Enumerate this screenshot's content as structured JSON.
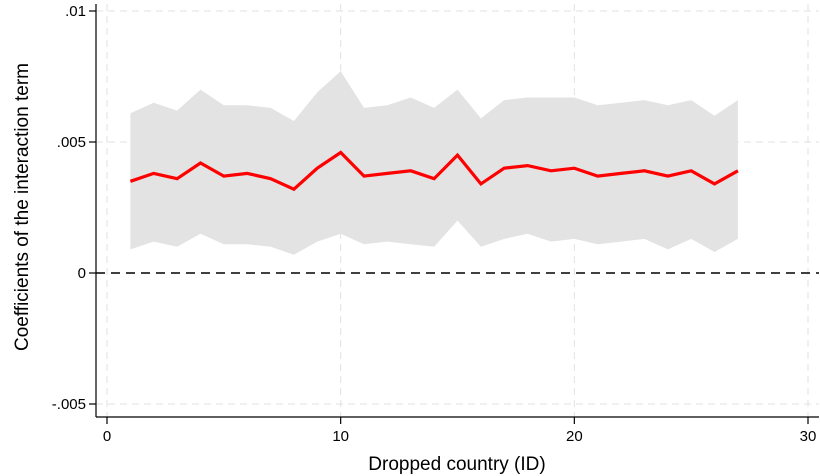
{
  "chart_data": {
    "type": "line",
    "title": "",
    "xlabel": "Dropped country (ID)",
    "ylabel": "Coefficients of the interaction term",
    "xlim": [
      0,
      30
    ],
    "ylim": [
      -0.005,
      0.01
    ],
    "x_ticks": [
      {
        "value": 0,
        "label": "0"
      },
      {
        "value": 10,
        "label": "10"
      },
      {
        "value": 20,
        "label": "20"
      },
      {
        "value": 30,
        "label": "30"
      }
    ],
    "y_ticks": [
      {
        "value": -0.005,
        "label": "-.005"
      },
      {
        "value": 0,
        "label": "0"
      },
      {
        "value": 0.005,
        "label": ".005"
      },
      {
        "value": 0.01,
        "label": ".01"
      }
    ],
    "grid": true,
    "reference_line": {
      "y": 0,
      "style": "dashed"
    },
    "x": [
      1,
      2,
      3,
      4,
      5,
      6,
      7,
      8,
      9,
      10,
      11,
      12,
      13,
      14,
      15,
      16,
      17,
      18,
      19,
      20,
      21,
      22,
      23,
      24,
      25,
      26,
      27
    ],
    "series": [
      {
        "values": [
          0.0035,
          0.0038,
          0.0036,
          0.0042,
          0.0037,
          0.0038,
          0.0036,
          0.0032,
          0.004,
          0.0046,
          0.0037,
          0.0038,
          0.0039,
          0.0036,
          0.0045,
          0.0034,
          0.004,
          0.0041,
          0.0039,
          0.004,
          0.0037,
          0.0038,
          0.0039,
          0.0037,
          0.0039,
          0.0034,
          0.0039
        ],
        "lower": [
          0.0009,
          0.0012,
          0.001,
          0.0015,
          0.0011,
          0.0011,
          0.001,
          0.0007,
          0.0012,
          0.0015,
          0.0011,
          0.0012,
          0.0011,
          0.001,
          0.002,
          0.001,
          0.0013,
          0.0015,
          0.0012,
          0.0013,
          0.0011,
          0.0012,
          0.0013,
          0.0009,
          0.0013,
          0.0008,
          0.0013
        ],
        "upper": [
          0.0061,
          0.0065,
          0.0062,
          0.007,
          0.0064,
          0.0064,
          0.0063,
          0.0058,
          0.0069,
          0.0077,
          0.0063,
          0.0064,
          0.0067,
          0.0063,
          0.007,
          0.0059,
          0.0066,
          0.0067,
          0.0067,
          0.0067,
          0.0064,
          0.0065,
          0.0066,
          0.0064,
          0.0066,
          0.006,
          0.0066
        ],
        "color": "#ff0000",
        "band_color": "#e3e3e3"
      }
    ]
  }
}
